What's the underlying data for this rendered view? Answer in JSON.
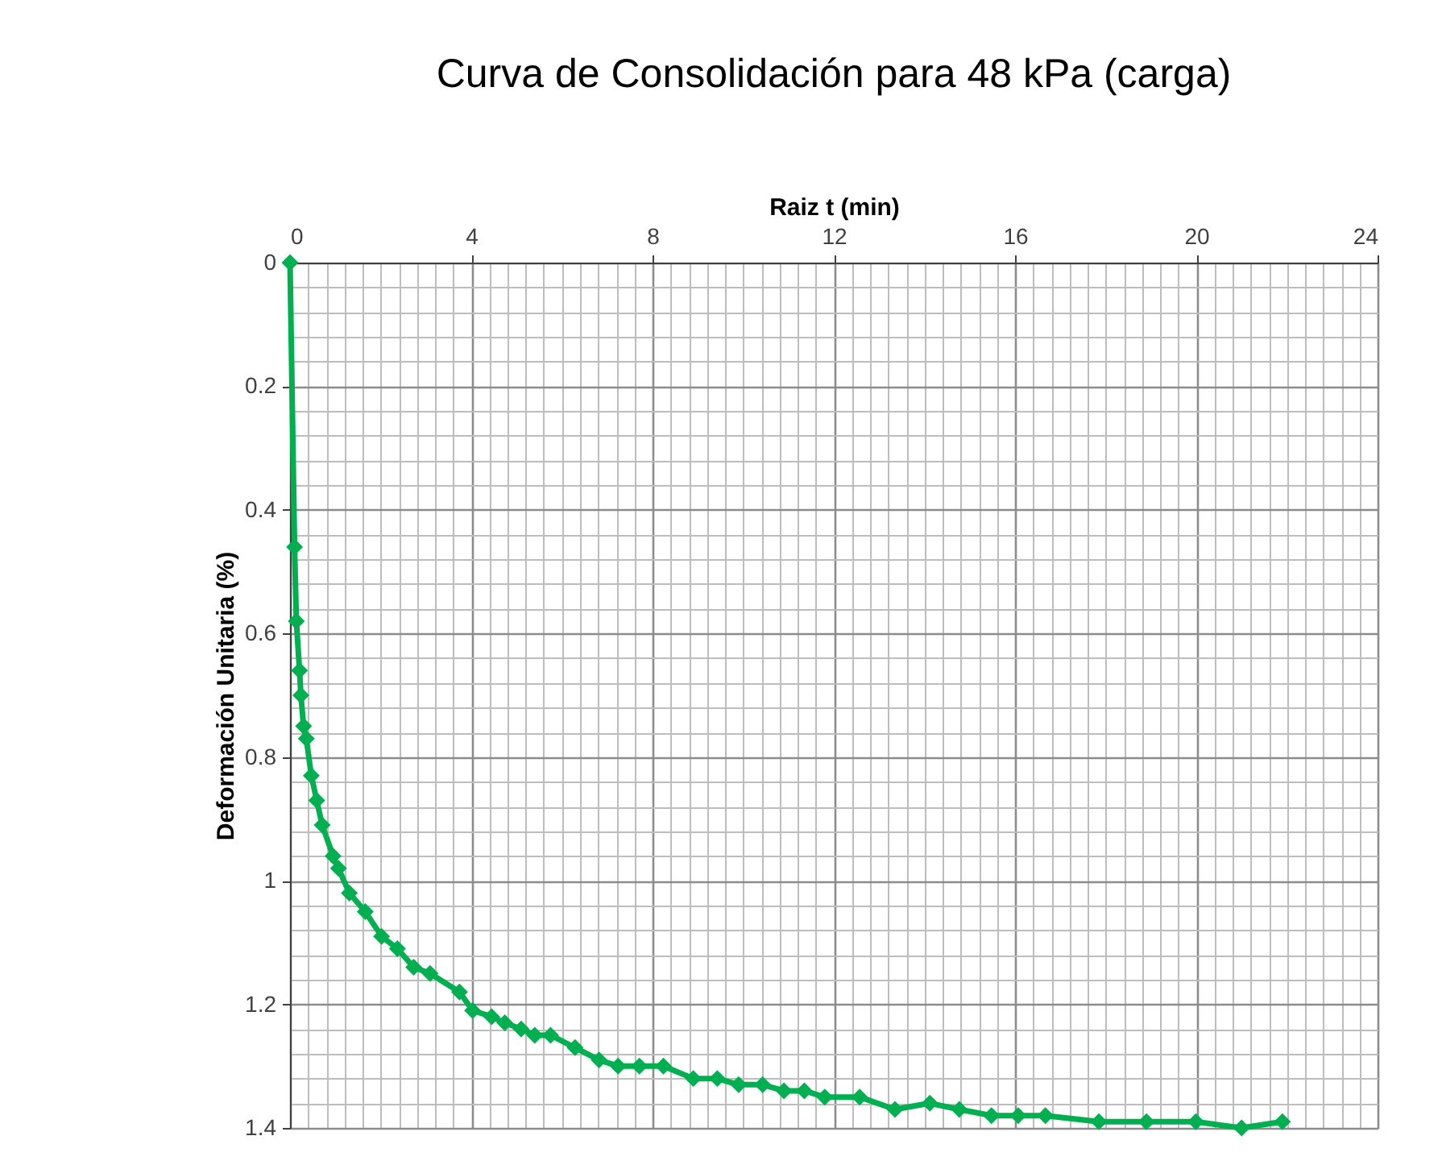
{
  "chart_data": {
    "type": "line",
    "title": "Curva de Consolidación para 48 kPa (carga)",
    "xlabel": "Raiz t (min)",
    "ylabel": "Deformación Unitaria  (%)",
    "x": [
      0,
      0.1,
      0.14,
      0.21,
      0.24,
      0.3,
      0.36,
      0.47,
      0.59,
      0.71,
      0.95,
      1.07,
      1.31,
      1.66,
      2.02,
      2.37,
      2.73,
      3.09,
      3.74,
      4.03,
      4.45,
      4.74,
      5.1,
      5.4,
      5.75,
      6.29,
      6.82,
      7.24,
      7.71,
      8.24,
      8.9,
      9.43,
      9.9,
      10.43,
      10.9,
      11.35,
      11.8,
      12.57,
      13.35,
      14.12,
      14.77,
      15.48,
      16.07,
      16.67,
      17.85,
      18.9,
      19.99,
      21.0,
      21.9
    ],
    "series": [
      {
        "color": "#00b050",
        "values": [
          0,
          0.46,
          0.58,
          0.66,
          0.7,
          0.75,
          0.77,
          0.83,
          0.87,
          0.91,
          0.96,
          0.98,
          1.02,
          1.05,
          1.09,
          1.11,
          1.14,
          1.15,
          1.18,
          1.21,
          1.22,
          1.23,
          1.24,
          1.25,
          1.25,
          1.27,
          1.29,
          1.3,
          1.3,
          1.3,
          1.32,
          1.32,
          1.33,
          1.33,
          1.34,
          1.34,
          1.35,
          1.35,
          1.37,
          1.36,
          1.37,
          1.38,
          1.38,
          1.38,
          1.39,
          1.39,
          1.39,
          1.4,
          1.39
        ]
      }
    ],
    "xlim": [
      0,
      24
    ],
    "xticks": [
      0,
      4,
      8,
      12,
      16,
      20,
      24
    ],
    "ylim": [
      1.4,
      0
    ],
    "yticks": [
      0,
      0.2,
      0.4,
      0.6,
      0.8,
      1,
      1.2,
      1.4
    ],
    "grid": true,
    "marker": "diamond",
    "line_style": "solid",
    "legend": false
  }
}
